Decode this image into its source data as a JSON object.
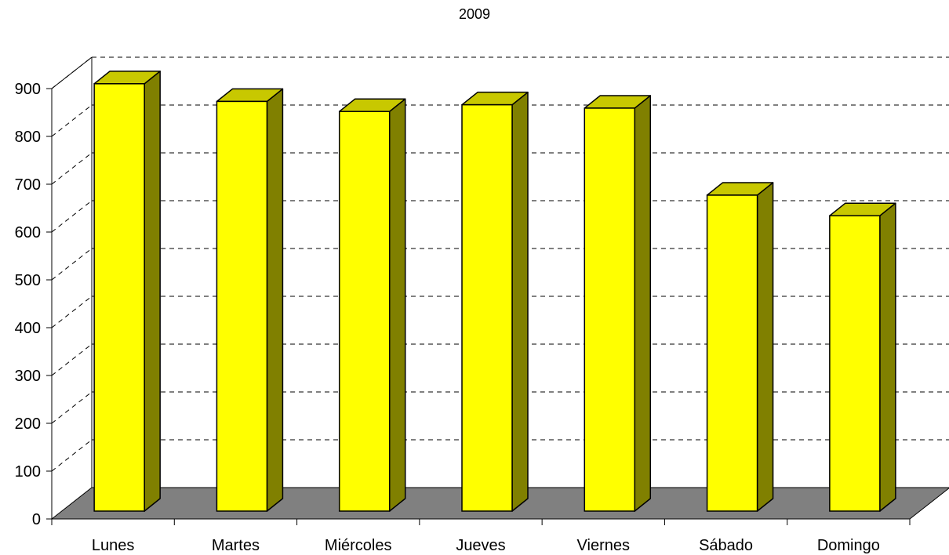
{
  "chart_data": {
    "type": "bar",
    "title": "2009",
    "xlabel": "",
    "ylabel": "",
    "categories": [
      "Lunes",
      "Martes",
      "Miércoles",
      "Jueves",
      "Viernes",
      "Sábado",
      "Domingo"
    ],
    "values": [
      897,
      860,
      839,
      853,
      846,
      664,
      621
    ],
    "ylim": [
      0,
      900
    ],
    "yticks": [
      0,
      100,
      200,
      300,
      400,
      500,
      600,
      700,
      800,
      900
    ],
    "grid": true,
    "legend": "none",
    "colors": {
      "bar_front": "#ffff00",
      "bar_side": "#808000",
      "bar_top": "#c8c800",
      "floor": "#808080",
      "gridline": "#000000"
    }
  }
}
